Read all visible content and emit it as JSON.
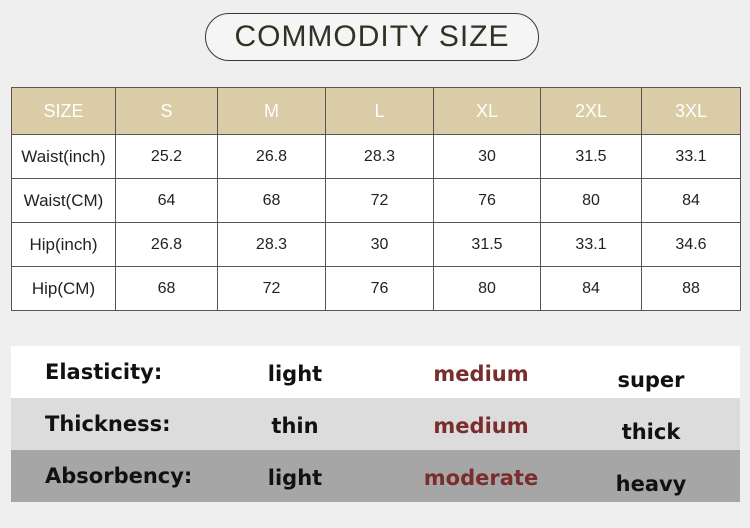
{
  "title": "COMMODITY SIZE",
  "size_table": {
    "header": [
      "SIZE",
      "S",
      "M",
      "L",
      "XL",
      "2XL",
      "3XL"
    ],
    "rows": [
      {
        "label": "Waist(inch)",
        "values": [
          "25.2",
          "26.8",
          "28.3",
          "30",
          "31.5",
          "33.1"
        ]
      },
      {
        "label": "Waist(CM)",
        "values": [
          "64",
          "68",
          "72",
          "76",
          "80",
          "84"
        ]
      },
      {
        "label": "Hip(inch)",
        "values": [
          "26.8",
          "28.3",
          "30",
          "31.5",
          "33.1",
          "34.6"
        ]
      },
      {
        "label": "Hip(CM)",
        "values": [
          "68",
          "72",
          "76",
          "80",
          "84",
          "88"
        ]
      }
    ]
  },
  "attributes": [
    {
      "label": "Elasticity:",
      "options": [
        "light",
        "medium",
        "super"
      ]
    },
    {
      "label": "Thickness:",
      "options": [
        "thin",
        "medium",
        "thick"
      ]
    },
    {
      "label": "Absorbency:",
      "options": [
        "light",
        "moderate",
        "heavy"
      ]
    }
  ],
  "colors": {
    "header_bg": "#d9cca7",
    "highlight_text": "#7a2d2d",
    "title_text": "#2f3323"
  }
}
